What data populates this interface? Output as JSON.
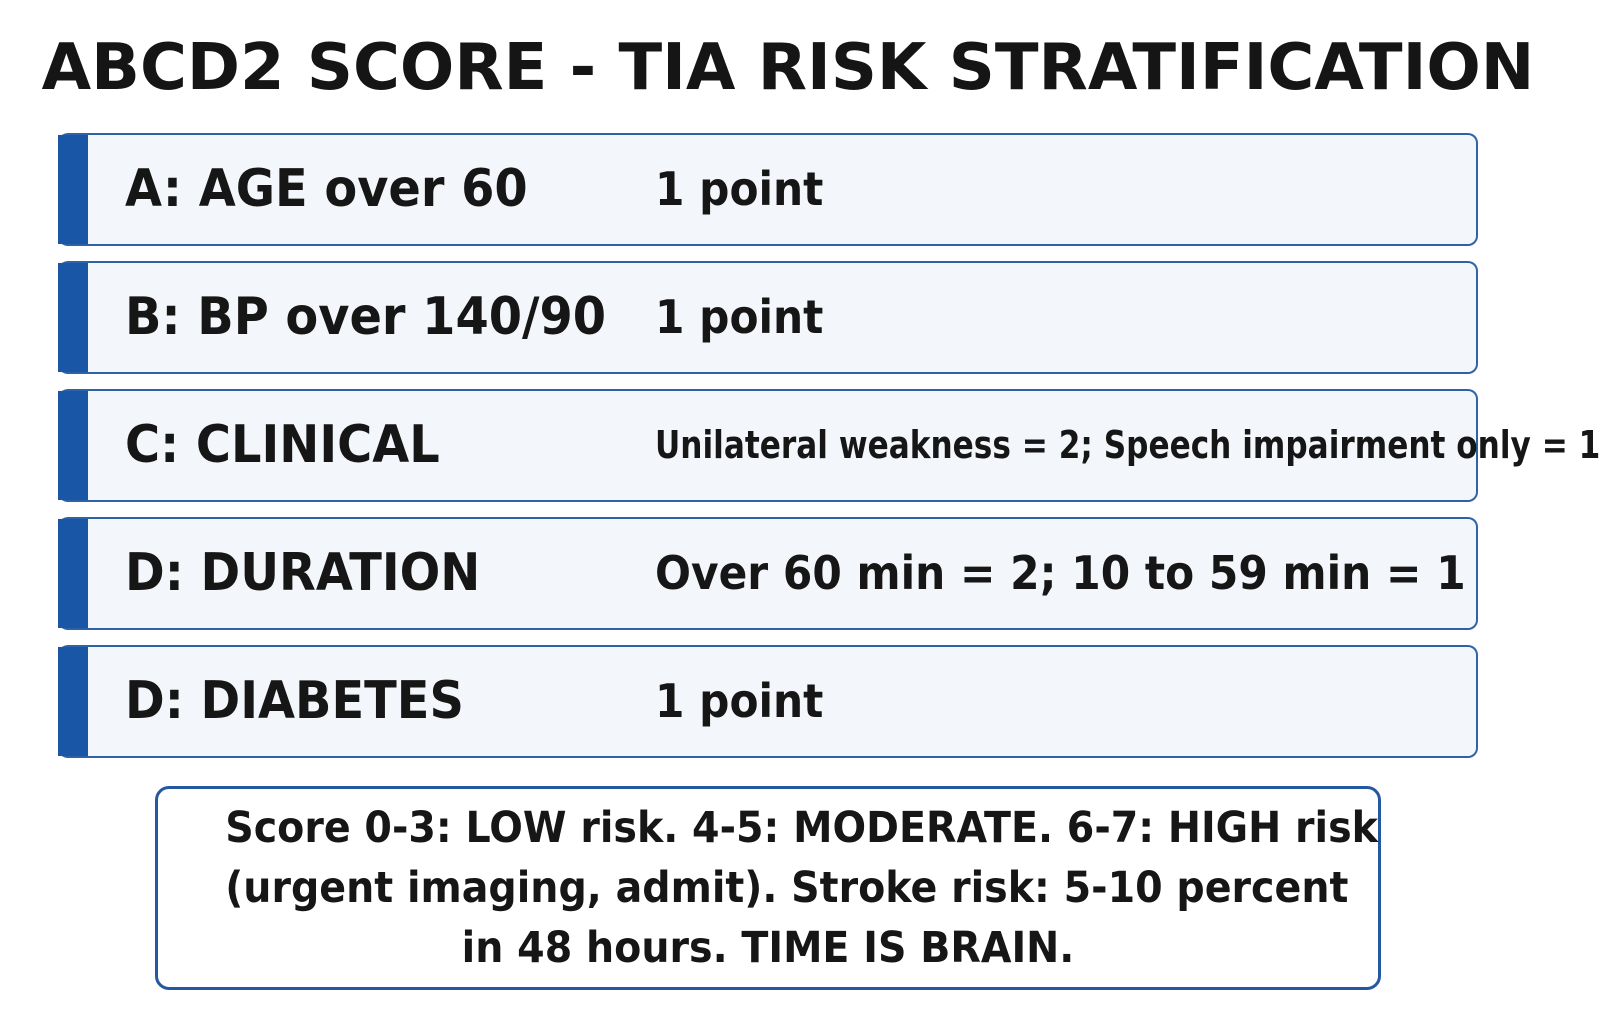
{
  "title": "ABCD2 SCORE - TIA RISK STRATIFICATION",
  "criteria": [
    {
      "label": "A: AGE over 60",
      "value": "1 point"
    },
    {
      "label": "B: BP over 140/90",
      "value": "1 point"
    },
    {
      "label": "C: CLINICAL",
      "value": "Unilateral weakness = 2; Speech impairment only = 1"
    },
    {
      "label": "D: DURATION",
      "value": "Over 60 min = 2; 10 to 59 min = 1"
    },
    {
      "label": "D: DIABETES",
      "value": "1 point"
    }
  ],
  "summary": {
    "line1": "Score 0-3: LOW risk. 4-5: MODERATE. 6-7: HIGH risk",
    "line2": "(urgent imaging, admit). Stroke risk: 5-10 percent",
    "line3": "in 48 hours. TIME IS BRAIN."
  },
  "colors": {
    "accent": "#1956a6",
    "border": "#2f63a8",
    "row_background": "#f3f6fa",
    "text": "#161616"
  }
}
